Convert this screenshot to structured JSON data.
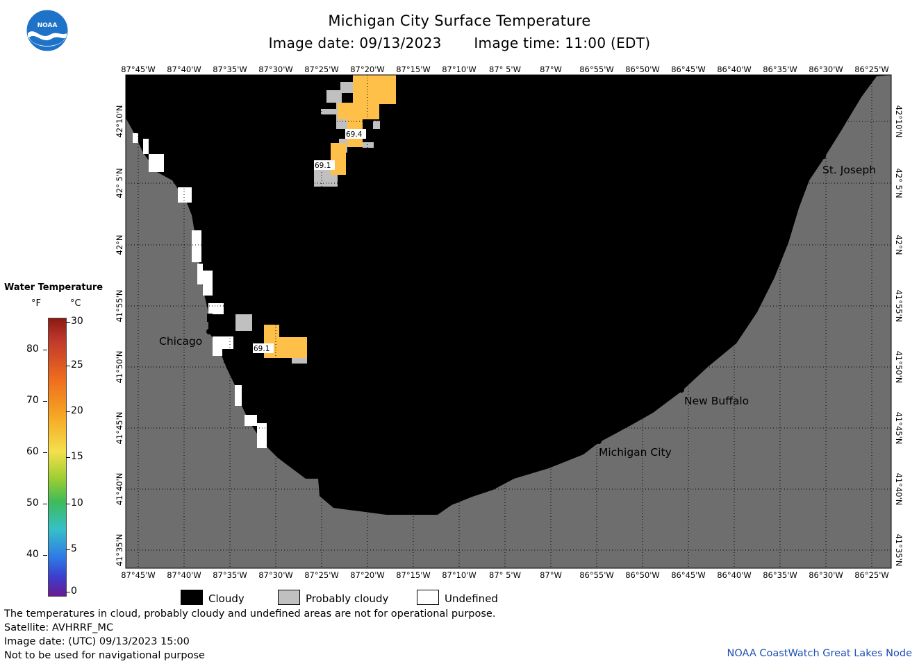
{
  "header": {
    "title": "Michigan City Surface Temperature",
    "image_date": "Image date: 09/13/2023",
    "image_time": "Image time: 11:00 (EDT)"
  },
  "logo": {
    "text": "NOAA",
    "icon": "noaa-logo-icon"
  },
  "map": {
    "lon_labels": [
      "87°45'W",
      "87°40'W",
      "87°35'W",
      "87°30'W",
      "87°25'W",
      "87°20'W",
      "87°15'W",
      "87°10'W",
      "87° 5'W",
      "87°W",
      "86°55'W",
      "86°50'W",
      "86°45'W",
      "86°40'W",
      "86°35'W",
      "86°30'W",
      "86°25'W"
    ],
    "lat_labels": [
      "42°10'N",
      "42° 5'N",
      "42°N",
      "41°55'N",
      "41°50'N",
      "41°45'N",
      "41°40'N",
      "41°35'N"
    ],
    "cities": [
      "Chicago",
      "St. Joseph",
      "New Buffalo",
      "Michigan City"
    ],
    "temp_labels": [
      "69.4",
      "69.1",
      "69.1"
    ],
    "colors": {
      "cloudy": "#000000",
      "probably_cloudy": "#c0c0c0",
      "undefined": "#ffffff",
      "land": "#6e6e6e",
      "water_warm": "#ffc04a"
    }
  },
  "legend": {
    "title": "Water Temperature",
    "unit_f": "°F",
    "unit_c": "°C",
    "f_ticks": [
      "80",
      "70",
      "60",
      "50",
      "40"
    ],
    "c_ticks": [
      "30",
      "25",
      "20",
      "15",
      "10",
      "5",
      "0"
    ]
  },
  "key": [
    {
      "label": "Cloudy",
      "color": "#000000"
    },
    {
      "label": "Probably cloudy",
      "color": "#c0c0c0"
    },
    {
      "label": "Undefined",
      "color": "#ffffff"
    }
  ],
  "footer": {
    "line1": "The temperatures in cloud, probably cloudy and undefined areas are not for operational purpose.",
    "line2": "Satellite: AVHRRF_MC",
    "line3": "Image date: (UTC) 09/13/2023  15:00",
    "line4": "Not to be used for navigational purpose",
    "credit": "NOAA CoastWatch Great Lakes Node"
  }
}
